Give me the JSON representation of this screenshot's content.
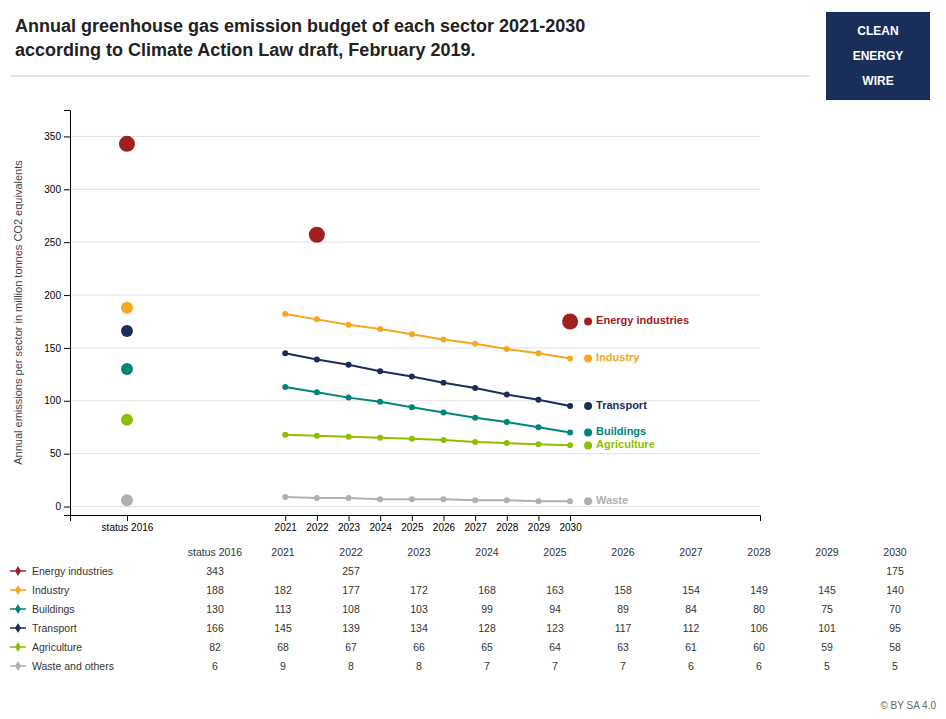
{
  "chart_data": {
    "type": "line",
    "title": "Annual greenhouse gas emission budget of each sector 2021-2030",
    "subtitle": "according to Climate Action Law draft, February 2019.",
    "y_label": "Annual emissions per sector in million tonnes CO2 equivalents",
    "x": [
      2016,
      2021,
      2022,
      2023,
      2024,
      2025,
      2026,
      2027,
      2028,
      2029,
      2030
    ],
    "xlim": [
      2014.2,
      2036
    ],
    "xticks": [
      {
        "value": 2016,
        "label": "status 2016"
      },
      2021,
      2022,
      2023,
      2024,
      2025,
      2026,
      2027,
      2028,
      2029,
      2030
    ],
    "ylim": [
      -8,
      375
    ],
    "yticks": [
      0,
      50,
      100,
      150,
      200,
      250,
      300,
      350
    ],
    "grid": true,
    "series": [
      {
        "name": "Energy industries",
        "color": "#a02020",
        "type": "scatter",
        "marker": "circle",
        "values": [
          343,
          null,
          257,
          null,
          null,
          null,
          null,
          null,
          null,
          null,
          175
        ]
      },
      {
        "name": "Industry",
        "color": "#f5a623",
        "type": "line",
        "marker": "circle",
        "values": [
          188,
          182,
          177,
          172,
          168,
          163,
          158,
          154,
          149,
          145,
          140
        ]
      },
      {
        "name": "Buildings",
        "color": "#00857a",
        "type": "line",
        "marker": "circle",
        "values": [
          130,
          113,
          108,
          103,
          99,
          94,
          89,
          84,
          80,
          75,
          70
        ]
      },
      {
        "name": "Transport",
        "color": "#1a2e5a",
        "type": "line",
        "marker": "circle",
        "values": [
          166,
          145,
          139,
          134,
          128,
          123,
          117,
          112,
          106,
          101,
          95
        ]
      },
      {
        "name": "Agriculture",
        "color": "#8fbe00",
        "type": "line",
        "marker": "circle",
        "values": [
          82,
          68,
          67,
          66,
          65,
          64,
          63,
          61,
          60,
          59,
          58
        ]
      },
      {
        "name": "Waste and others",
        "color": "#b0b0b0",
        "type": "line",
        "marker": "circle",
        "values": [
          6,
          9,
          8,
          8,
          7,
          7,
          7,
          6,
          6,
          5,
          5
        ]
      }
    ],
    "annotations": [
      "Energy industries",
      "Industry",
      "Buildings",
      "Transport",
      "Agriculture",
      "Waste"
    ],
    "logo": [
      "CLEAN",
      "ENERGY",
      "WIRE"
    ],
    "credit": "©  BY SA 4.0"
  }
}
